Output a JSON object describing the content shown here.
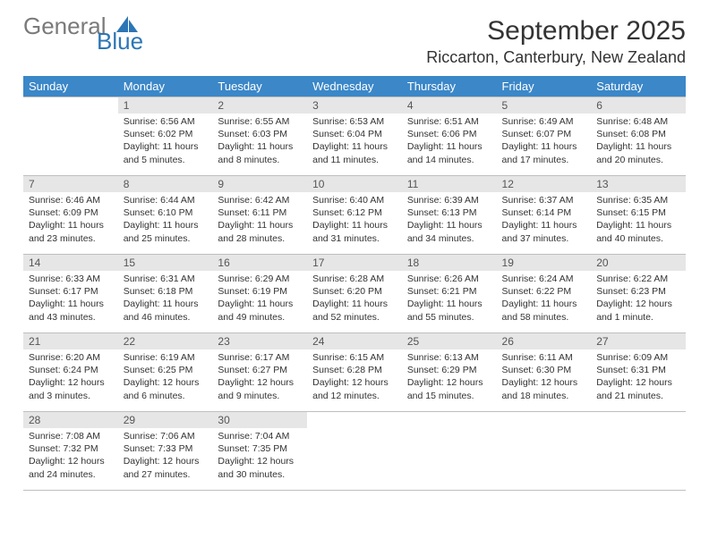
{
  "brand": {
    "name1": "General",
    "name2": "Blue",
    "accent": "#2d75b5",
    "grey": "#7a7a7a"
  },
  "title": "September 2025",
  "location": "Riccarton, Canterbury, New Zealand",
  "colors": {
    "header_bg": "#3b87c8",
    "header_text": "#ffffff",
    "daynum_bg": "#e6e6e6",
    "border": "#bfbfbf",
    "text": "#333333"
  },
  "day_headers": [
    "Sunday",
    "Monday",
    "Tuesday",
    "Wednesday",
    "Thursday",
    "Friday",
    "Saturday"
  ],
  "weeks": [
    [
      null,
      {
        "n": "1",
        "sr": "6:56 AM",
        "ss": "6:02 PM",
        "dl": "Daylight: 11 hours and 5 minutes."
      },
      {
        "n": "2",
        "sr": "6:55 AM",
        "ss": "6:03 PM",
        "dl": "Daylight: 11 hours and 8 minutes."
      },
      {
        "n": "3",
        "sr": "6:53 AM",
        "ss": "6:04 PM",
        "dl": "Daylight: 11 hours and 11 minutes."
      },
      {
        "n": "4",
        "sr": "6:51 AM",
        "ss": "6:06 PM",
        "dl": "Daylight: 11 hours and 14 minutes."
      },
      {
        "n": "5",
        "sr": "6:49 AM",
        "ss": "6:07 PM",
        "dl": "Daylight: 11 hours and 17 minutes."
      },
      {
        "n": "6",
        "sr": "6:48 AM",
        "ss": "6:08 PM",
        "dl": "Daylight: 11 hours and 20 minutes."
      }
    ],
    [
      {
        "n": "7",
        "sr": "6:46 AM",
        "ss": "6:09 PM",
        "dl": "Daylight: 11 hours and 23 minutes."
      },
      {
        "n": "8",
        "sr": "6:44 AM",
        "ss": "6:10 PM",
        "dl": "Daylight: 11 hours and 25 minutes."
      },
      {
        "n": "9",
        "sr": "6:42 AM",
        "ss": "6:11 PM",
        "dl": "Daylight: 11 hours and 28 minutes."
      },
      {
        "n": "10",
        "sr": "6:40 AM",
        "ss": "6:12 PM",
        "dl": "Daylight: 11 hours and 31 minutes."
      },
      {
        "n": "11",
        "sr": "6:39 AM",
        "ss": "6:13 PM",
        "dl": "Daylight: 11 hours and 34 minutes."
      },
      {
        "n": "12",
        "sr": "6:37 AM",
        "ss": "6:14 PM",
        "dl": "Daylight: 11 hours and 37 minutes."
      },
      {
        "n": "13",
        "sr": "6:35 AM",
        "ss": "6:15 PM",
        "dl": "Daylight: 11 hours and 40 minutes."
      }
    ],
    [
      {
        "n": "14",
        "sr": "6:33 AM",
        "ss": "6:17 PM",
        "dl": "Daylight: 11 hours and 43 minutes."
      },
      {
        "n": "15",
        "sr": "6:31 AM",
        "ss": "6:18 PM",
        "dl": "Daylight: 11 hours and 46 minutes."
      },
      {
        "n": "16",
        "sr": "6:29 AM",
        "ss": "6:19 PM",
        "dl": "Daylight: 11 hours and 49 minutes."
      },
      {
        "n": "17",
        "sr": "6:28 AM",
        "ss": "6:20 PM",
        "dl": "Daylight: 11 hours and 52 minutes."
      },
      {
        "n": "18",
        "sr": "6:26 AM",
        "ss": "6:21 PM",
        "dl": "Daylight: 11 hours and 55 minutes."
      },
      {
        "n": "19",
        "sr": "6:24 AM",
        "ss": "6:22 PM",
        "dl": "Daylight: 11 hours and 58 minutes."
      },
      {
        "n": "20",
        "sr": "6:22 AM",
        "ss": "6:23 PM",
        "dl": "Daylight: 12 hours and 1 minute."
      }
    ],
    [
      {
        "n": "21",
        "sr": "6:20 AM",
        "ss": "6:24 PM",
        "dl": "Daylight: 12 hours and 3 minutes."
      },
      {
        "n": "22",
        "sr": "6:19 AM",
        "ss": "6:25 PM",
        "dl": "Daylight: 12 hours and 6 minutes."
      },
      {
        "n": "23",
        "sr": "6:17 AM",
        "ss": "6:27 PM",
        "dl": "Daylight: 12 hours and 9 minutes."
      },
      {
        "n": "24",
        "sr": "6:15 AM",
        "ss": "6:28 PM",
        "dl": "Daylight: 12 hours and 12 minutes."
      },
      {
        "n": "25",
        "sr": "6:13 AM",
        "ss": "6:29 PM",
        "dl": "Daylight: 12 hours and 15 minutes."
      },
      {
        "n": "26",
        "sr": "6:11 AM",
        "ss": "6:30 PM",
        "dl": "Daylight: 12 hours and 18 minutes."
      },
      {
        "n": "27",
        "sr": "6:09 AM",
        "ss": "6:31 PM",
        "dl": "Daylight: 12 hours and 21 minutes."
      }
    ],
    [
      {
        "n": "28",
        "sr": "7:08 AM",
        "ss": "7:32 PM",
        "dl": "Daylight: 12 hours and 24 minutes."
      },
      {
        "n": "29",
        "sr": "7:06 AM",
        "ss": "7:33 PM",
        "dl": "Daylight: 12 hours and 27 minutes."
      },
      {
        "n": "30",
        "sr": "7:04 AM",
        "ss": "7:35 PM",
        "dl": "Daylight: 12 hours and 30 minutes."
      },
      null,
      null,
      null,
      null
    ]
  ],
  "labels": {
    "sunrise": "Sunrise:",
    "sunset": "Sunset:"
  }
}
